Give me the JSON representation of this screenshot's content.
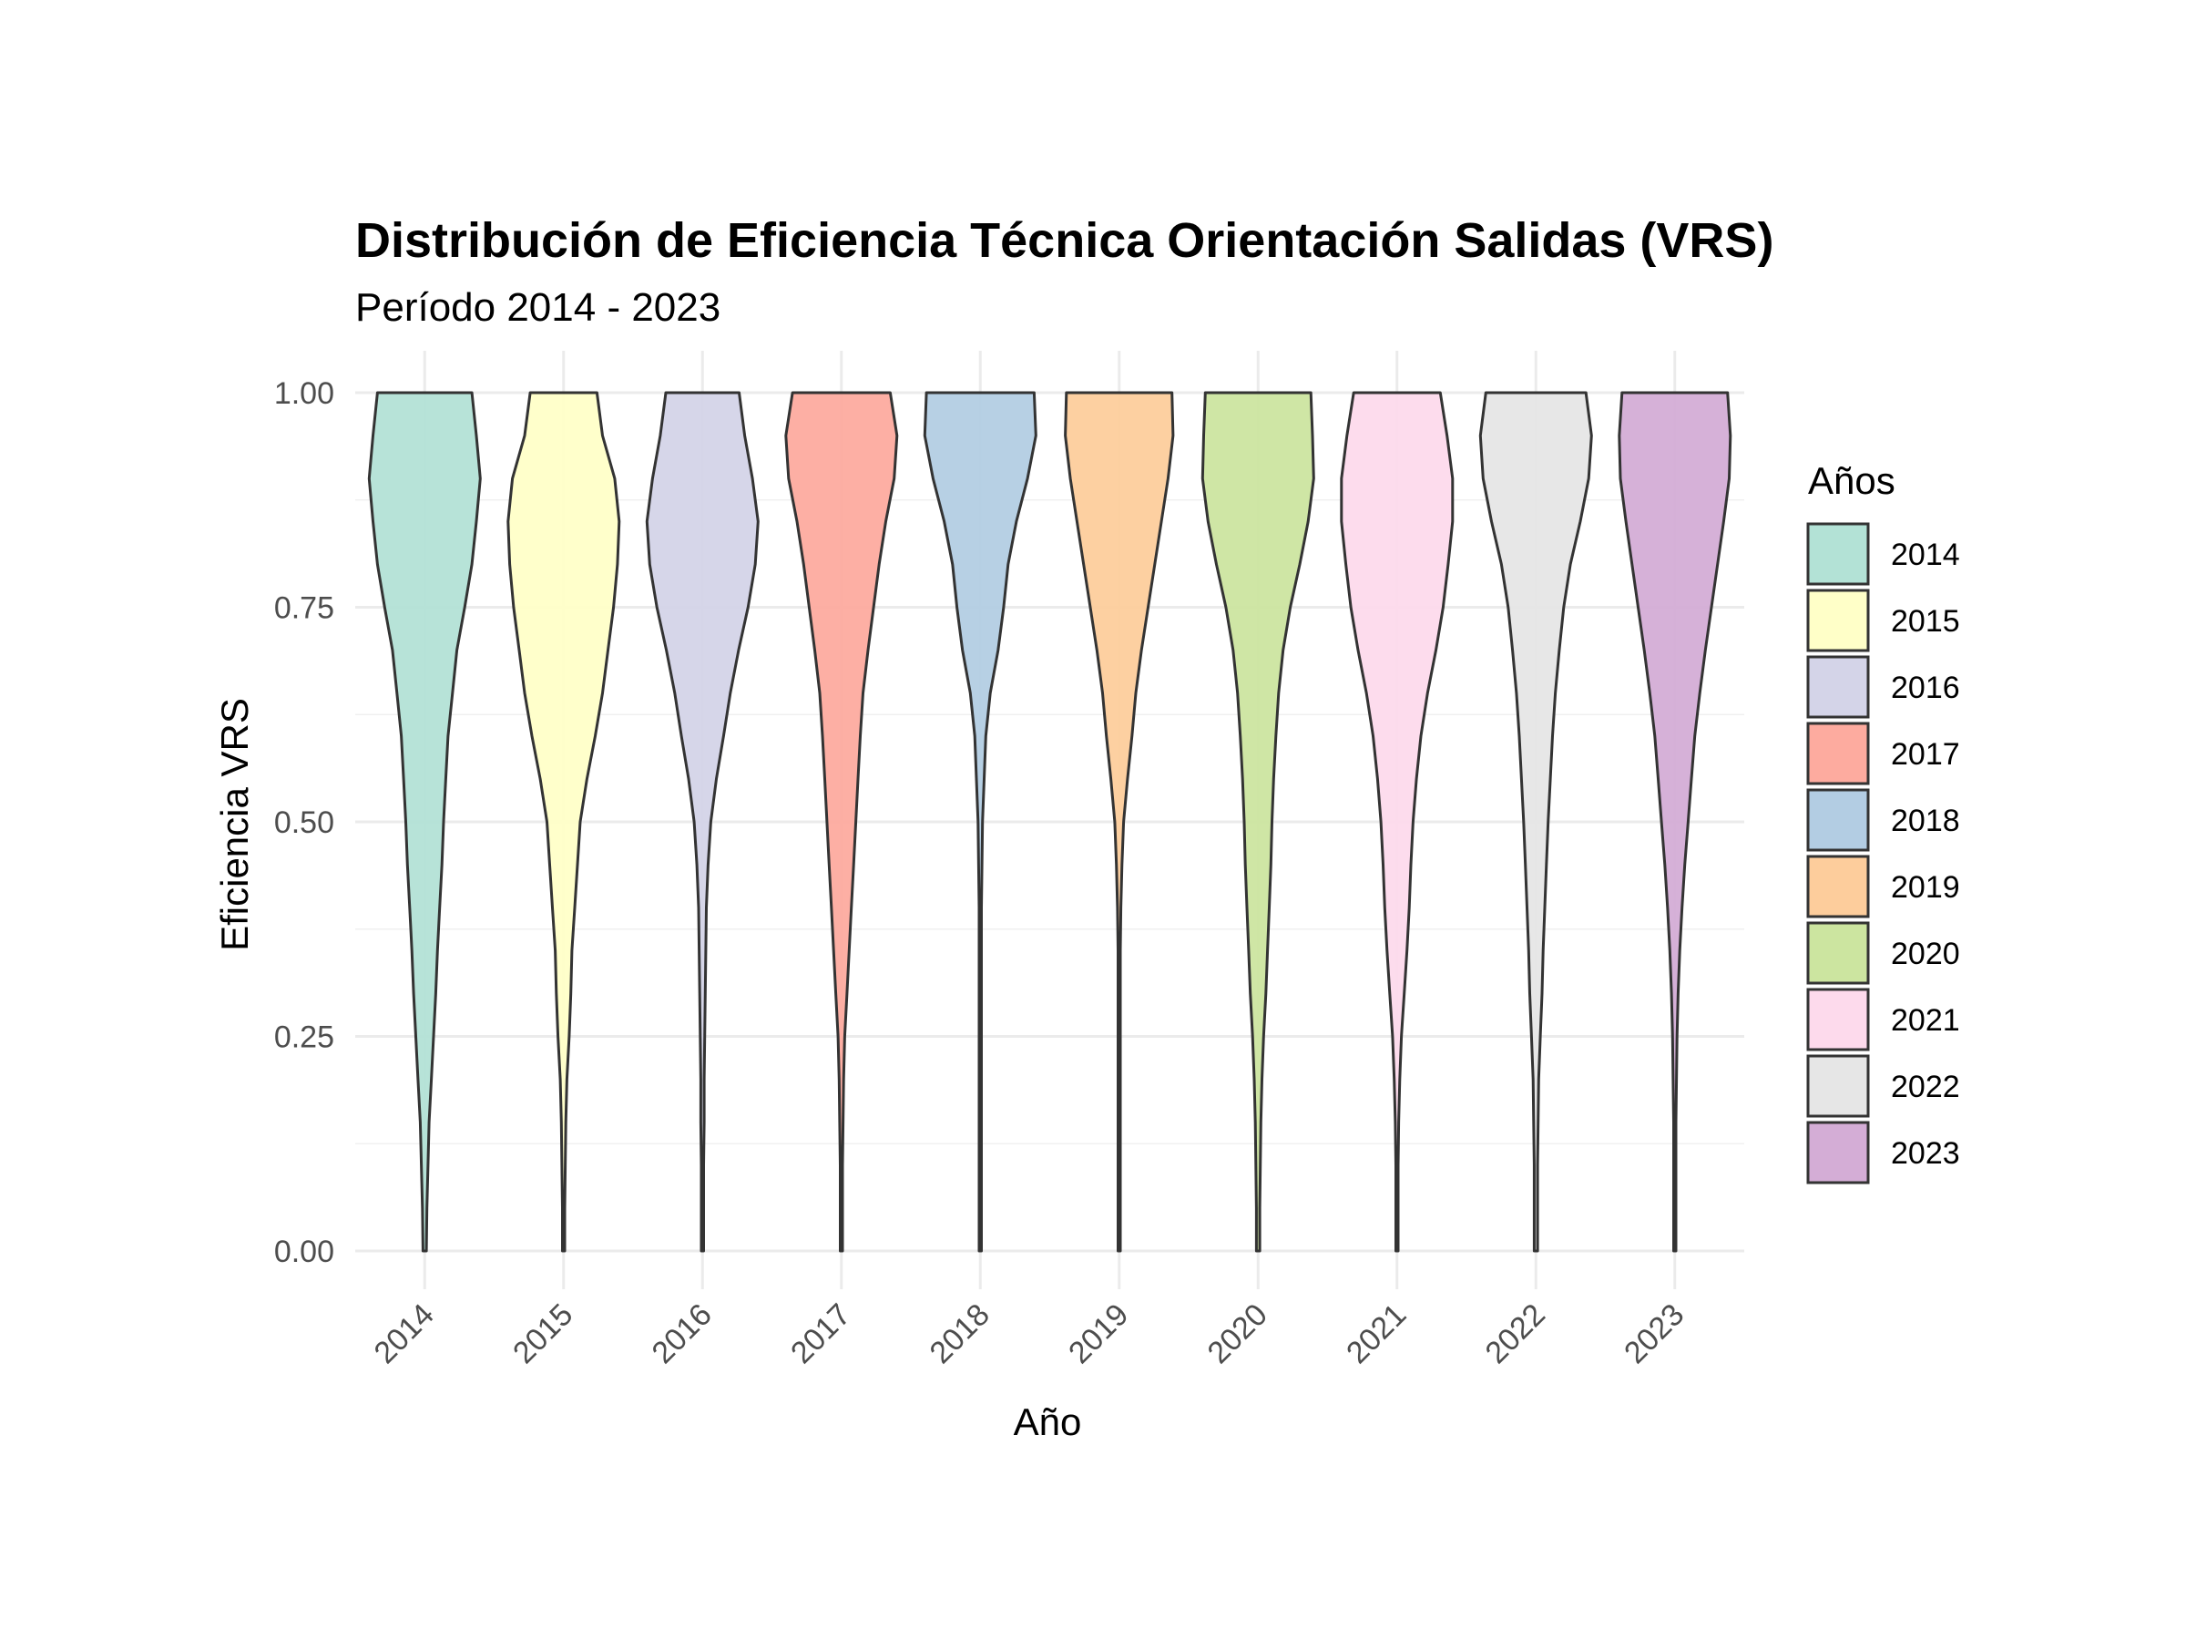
{
  "chart_data": {
    "type": "violin",
    "title": "Distribución de Eficiencia Técnica Orientación Salidas (VRS)",
    "subtitle": "Período 2014 - 2023",
    "xlabel": "Año",
    "ylabel": "Eficiencia VRS",
    "ylim": [
      0,
      1
    ],
    "y_ticks": [
      "0.00",
      "0.25",
      "0.50",
      "0.75",
      "1.00"
    ],
    "grid": true,
    "legend": {
      "title": "Años",
      "placement": "right"
    },
    "density_grid": [
      0.0,
      0.05,
      0.1,
      0.15,
      0.2,
      0.25,
      0.3,
      0.35,
      0.4,
      0.45,
      0.5,
      0.55,
      0.6,
      0.65,
      0.7,
      0.75,
      0.8,
      0.85,
      0.9,
      0.95,
      1.0
    ],
    "series": [
      {
        "name": "2014",
        "color": "#b3e2d6",
        "density": [
          0.03,
          0.04,
          0.06,
          0.08,
          0.12,
          0.16,
          0.2,
          0.23,
          0.27,
          0.31,
          0.34,
          0.38,
          0.42,
          0.5,
          0.58,
          0.72,
          0.85,
          0.93,
          1.0,
          0.93,
          0.85
        ]
      },
      {
        "name": "2015",
        "color": "#ffffc8",
        "density": [
          0.02,
          0.02,
          0.03,
          0.04,
          0.06,
          0.1,
          0.13,
          0.15,
          0.2,
          0.25,
          0.3,
          0.42,
          0.57,
          0.7,
          0.8,
          0.9,
          0.97,
          1.0,
          0.92,
          0.7,
          0.6
        ]
      },
      {
        "name": "2016",
        "color": "#d4d4e8",
        "density": [
          0.02,
          0.02,
          0.02,
          0.03,
          0.03,
          0.04,
          0.05,
          0.06,
          0.07,
          0.1,
          0.15,
          0.25,
          0.38,
          0.5,
          0.65,
          0.82,
          0.95,
          1.0,
          0.9,
          0.76,
          0.66
        ]
      },
      {
        "name": "2017",
        "color": "#fdab9f",
        "density": [
          0.02,
          0.02,
          0.02,
          0.03,
          0.04,
          0.06,
          0.1,
          0.14,
          0.18,
          0.22,
          0.26,
          0.3,
          0.34,
          0.39,
          0.48,
          0.58,
          0.68,
          0.8,
          0.95,
          1.0,
          0.88
        ]
      },
      {
        "name": "2018",
        "color": "#b3cde3",
        "density": [
          0.02,
          0.02,
          0.02,
          0.02,
          0.02,
          0.02,
          0.02,
          0.02,
          0.02,
          0.03,
          0.04,
          0.07,
          0.1,
          0.18,
          0.32,
          0.42,
          0.5,
          0.65,
          0.85,
          1.0,
          0.97
        ]
      },
      {
        "name": "2019",
        "color": "#fdcd9c",
        "density": [
          0.02,
          0.02,
          0.02,
          0.02,
          0.02,
          0.02,
          0.02,
          0.02,
          0.03,
          0.05,
          0.08,
          0.15,
          0.23,
          0.3,
          0.4,
          0.52,
          0.64,
          0.76,
          0.88,
          0.97,
          0.95
        ]
      },
      {
        "name": "2020",
        "color": "#cce5a0",
        "density": [
          0.03,
          0.03,
          0.04,
          0.05,
          0.07,
          0.1,
          0.14,
          0.17,
          0.2,
          0.23,
          0.25,
          0.28,
          0.32,
          0.37,
          0.45,
          0.58,
          0.75,
          0.9,
          1.0,
          0.98,
          0.95
        ]
      },
      {
        "name": "2021",
        "color": "#fddaec",
        "density": [
          0.02,
          0.02,
          0.02,
          0.03,
          0.05,
          0.08,
          0.13,
          0.18,
          0.22,
          0.25,
          0.29,
          0.35,
          0.43,
          0.55,
          0.7,
          0.83,
          0.92,
          1.0,
          1.0,
          0.9,
          0.78
        ]
      },
      {
        "name": "2022",
        "color": "#e6e6e6",
        "density": [
          0.03,
          0.03,
          0.03,
          0.04,
          0.05,
          0.08,
          0.11,
          0.13,
          0.16,
          0.19,
          0.22,
          0.26,
          0.3,
          0.35,
          0.42,
          0.5,
          0.62,
          0.8,
          0.95,
          1.0,
          0.9
        ]
      },
      {
        "name": "2023",
        "color": "#d4add6",
        "density": [
          0.02,
          0.02,
          0.02,
          0.02,
          0.03,
          0.04,
          0.06,
          0.09,
          0.13,
          0.18,
          0.24,
          0.3,
          0.36,
          0.45,
          0.55,
          0.66,
          0.77,
          0.88,
          0.98,
          1.0,
          0.95
        ]
      }
    ]
  }
}
